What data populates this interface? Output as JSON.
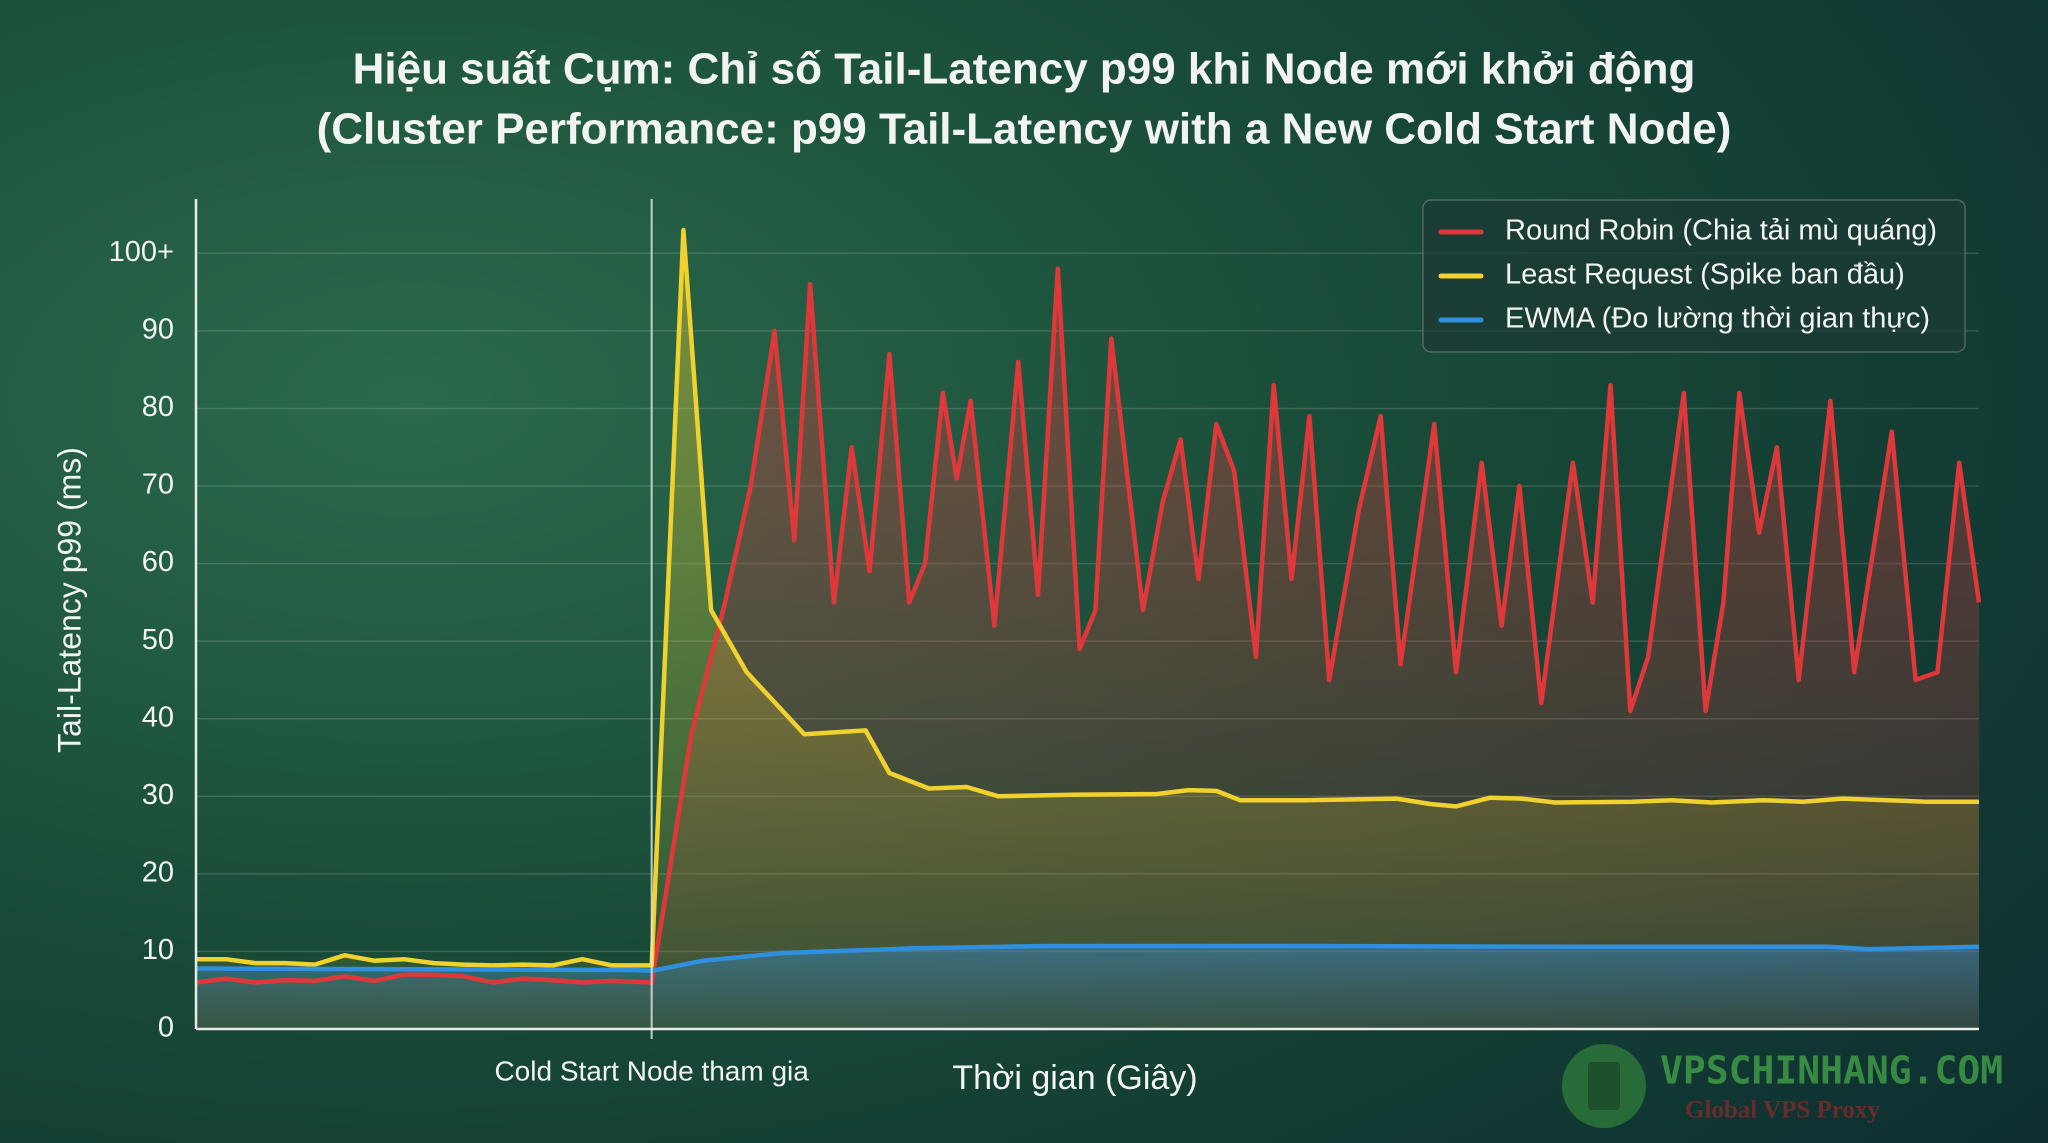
{
  "chart_data": {
    "type": "line",
    "title": [
      "Hiệu suất Cụm: Chỉ số Tail-Latency p99 khi Node mới khởi động",
      "(Cluster Performance: p99 Tail-Latency with a New Cold Start Node)"
    ],
    "y_label": "Tail-Latency p99 (ms)",
    "x_label": "Thời gian (Giây)",
    "xlim": [
      0,
      90
    ],
    "ylim": [
      0,
      107
    ],
    "yticks": [
      0,
      10,
      20,
      30,
      40,
      50,
      60,
      70,
      80,
      90,
      {
        "value": 100,
        "label": "100+"
      }
    ],
    "grid": true,
    "legend": "upper right",
    "annotations": [
      {
        "text": "Cold Start Node tham gia",
        "x": 23
      }
    ],
    "series": [
      {
        "name": "Round Robin (Chia tải mù quáng)",
        "color": "#e0383a",
        "x": [
          0,
          1.5,
          3,
          4.5,
          6,
          7.5,
          9,
          10.5,
          12,
          13.5,
          15,
          16.5,
          18,
          19.5,
          21,
          23,
          25,
          26.7,
          28,
          29.2,
          30.2,
          31,
          32.2,
          33.1,
          34,
          35,
          36,
          36.8,
          37.7,
          38.4,
          39.1,
          40.3,
          41.5,
          42.5,
          43.5,
          44.6,
          45.4,
          46.2,
          47.8,
          48.8,
          49.7,
          50.6,
          51.5,
          52.4,
          53.5,
          54.4,
          55.3,
          56.2,
          57.2,
          58.7,
          59.8,
          60.8,
          62.5,
          63.6,
          64.9,
          65.9,
          66.8,
          67.9,
          69.5,
          70.5,
          71.4,
          72.4,
          73.3,
          75.1,
          76.2,
          77.1,
          77.9,
          78.9,
          79.8,
          80.9,
          82.5,
          83.7,
          85.6,
          86.8,
          87.9,
          89,
          90
        ],
        "values": [
          6,
          6.5,
          6,
          6.3,
          6.2,
          6.8,
          6.2,
          7,
          7,
          6.8,
          6,
          6.5,
          6.3,
          6,
          6.2,
          6,
          38,
          55,
          70,
          90,
          63,
          96,
          55,
          75,
          59,
          87,
          55,
          60,
          82,
          71,
          81,
          52,
          86,
          56,
          98,
          49,
          54,
          89,
          54,
          68,
          76,
          58,
          78,
          72,
          48,
          83,
          58,
          79,
          45,
          67,
          79,
          47,
          78,
          46,
          73,
          52,
          70,
          42,
          73,
          55,
          83,
          41,
          48,
          82,
          41,
          55,
          82,
          64,
          75,
          45,
          81,
          46,
          77,
          45,
          46,
          73,
          55
        ]
      },
      {
        "name": "Least Request (Spike ban đầu)",
        "color": "#f0d12e",
        "x": [
          0,
          1.5,
          3,
          4.5,
          6,
          7.5,
          9,
          10.5,
          12,
          13.5,
          15,
          16.5,
          18,
          19.5,
          21,
          23,
          24.6,
          26,
          27.8,
          30.7,
          33.8,
          35,
          37,
          38.9,
          40.5,
          44.2,
          48.5,
          50.1,
          51.5,
          52.7,
          56,
          60.6,
          62.3,
          63.6,
          65.3,
          66.9,
          68.6,
          72.5,
          74.5,
          76.5,
          79.1,
          81.1,
          83.1,
          85.4,
          87.3,
          90
        ],
        "values": [
          9,
          9,
          8.5,
          8.5,
          8.3,
          9.5,
          8.8,
          9,
          8.5,
          8.3,
          8.2,
          8.3,
          8.2,
          9,
          8.2,
          8.2,
          103,
          54,
          46,
          38,
          38.5,
          33,
          31,
          31.2,
          30,
          30.2,
          30.3,
          30.8,
          30.7,
          29.5,
          29.5,
          29.7,
          29,
          28.7,
          29.8,
          29.7,
          29.2,
          29.3,
          29.5,
          29.2,
          29.5,
          29.3,
          29.7,
          29.5,
          29.3,
          29.3
        ]
      },
      {
        "name": "EWMA (Đo lường thời gian thực)",
        "color": "#2f8fe0",
        "x": [
          0,
          22,
          23,
          25.6,
          29.6,
          36.3,
          42.9,
          56,
          69.2,
          82.4,
          84.4,
          90
        ],
        "values": [
          7.8,
          7.6,
          7.5,
          8.8,
          9.8,
          10.4,
          10.7,
          10.7,
          10.6,
          10.6,
          10.3,
          10.6
        ]
      }
    ],
    "watermark": {
      "brand": "VPSCHINHANG.COM",
      "tagline": "Global VPS Proxy"
    }
  }
}
